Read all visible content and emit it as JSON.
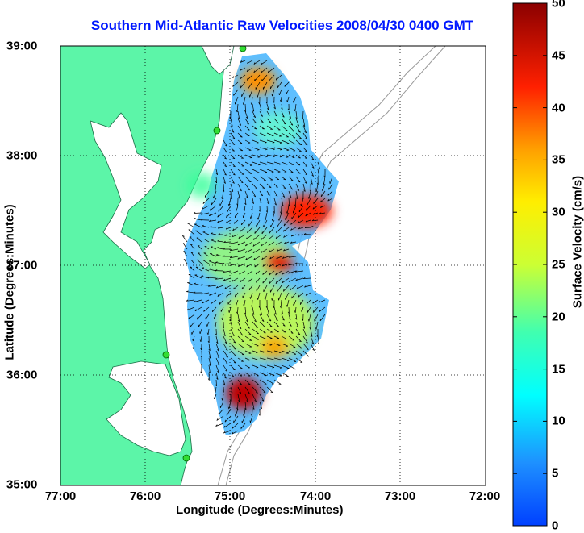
{
  "title": "Southern Mid-Atlantic Raw Velocities 2008/04/30 0400 GMT",
  "x_axis": {
    "label": "Longitude (Degrees:Minutes)",
    "ticks": [
      "77:00",
      "76:00",
      "75:00",
      "74:00",
      "73:00",
      "72:00"
    ]
  },
  "y_axis": {
    "label": "Latitude (Degrees:Minutes)",
    "ticks": [
      "39:00",
      "38:00",
      "37:00",
      "36:00",
      "35:00"
    ]
  },
  "colorbar": {
    "label": "Surface Velocity (cm/s)",
    "ticks": [
      "0",
      "5",
      "10",
      "15",
      "20",
      "25",
      "30",
      "35",
      "40",
      "45",
      "50"
    ],
    "range": [
      0,
      50
    ],
    "colormap": "jet"
  },
  "map": {
    "region": "Southern Mid-Atlantic Bight",
    "lon_range": [
      -77.0,
      -72.0
    ],
    "lat_range": [
      35.0,
      39.0
    ],
    "land_color": "#5cf5a8",
    "ocean_color": "#ffffff",
    "grid": "dotted",
    "stations_color": "#33dd33",
    "arrow_color": "#000000"
  },
  "chart_data": {
    "type": "heatmap",
    "title": "Southern Mid-Atlantic Raw Velocities 2008/04/30 0400 GMT",
    "xlabel": "Longitude (Degrees:Minutes)",
    "ylabel": "Latitude (Degrees:Minutes)",
    "xlim": [
      -77.0,
      -72.0
    ],
    "ylim": [
      35.0,
      39.0
    ],
    "colorbar_label": "Surface Velocity (cm/s)",
    "clim": [
      0,
      50
    ],
    "stations": [
      {
        "lon": -74.88,
        "lat": 38.98
      },
      {
        "lon": -75.15,
        "lat": 38.22
      },
      {
        "lon": -75.72,
        "lat": 36.18
      },
      {
        "lon": -75.47,
        "lat": 35.24
      }
    ],
    "velocity_hotspots": [
      {
        "lon": -74.2,
        "lat": 37.5,
        "speed": 50
      },
      {
        "lon": -74.45,
        "lat": 37.05,
        "speed": 45
      },
      {
        "lon": -74.95,
        "lat": 35.8,
        "speed": 50
      },
      {
        "lon": -74.85,
        "lat": 38.75,
        "speed": 35
      },
      {
        "lon": -74.7,
        "lat": 36.25,
        "speed": 32
      }
    ]
  }
}
